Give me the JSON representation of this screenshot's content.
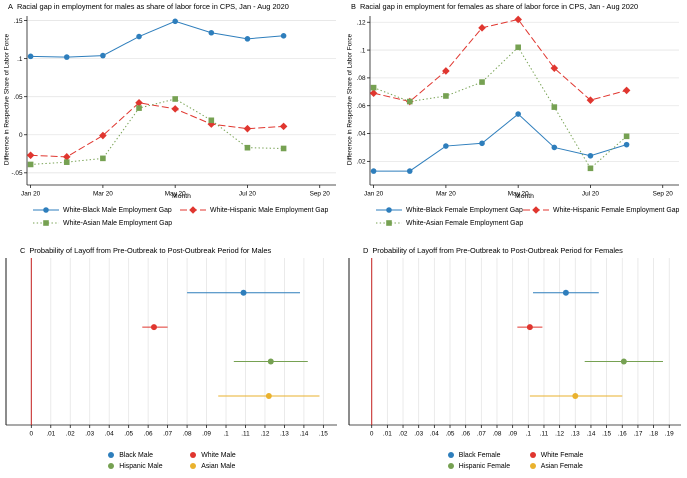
{
  "figure": {
    "background": "#ffffff",
    "axis_color": "#1a1a1a",
    "grid_color": "#e5e5e5",
    "zero_line_color": "#c5211f"
  },
  "chart_data": [
    {
      "type": "line",
      "panel_letter": "A",
      "title": "Racial gap in employment for males as share of labor force in CPS, Jan - Aug 2020",
      "xlabel": "Month",
      "ylabel": "Difference in Respective Share of Labor Force",
      "x_tick_labels": [
        "Jan 20",
        "Mar 20",
        "May 20",
        "Jul 20",
        "Sep 20"
      ],
      "x_tick_positions": [
        0,
        2,
        4,
        6,
        8
      ],
      "x_range": [
        -0.1,
        8.45
      ],
      "y_tick_values": [
        -0.05,
        0,
        0.05,
        0.1,
        0.15
      ],
      "y_tick_labels": [
        "-.05",
        "0",
        ".05",
        ".1",
        ".15"
      ],
      "y_range": [
        -0.066,
        0.156
      ],
      "grid": "horizontal",
      "series": [
        {
          "name": "White-Black Male Employment Gap",
          "color": "#2e7ebc",
          "marker": "circle",
          "dash": "solid",
          "values": [
            0.103,
            0.102,
            0.104,
            0.129,
            0.149,
            0.134,
            0.126,
            0.13
          ]
        },
        {
          "name": "White-Hispanic Male Employment Gap",
          "color": "#e0362f",
          "marker": "diamond",
          "dash": "dashed",
          "values": [
            -0.027,
            -0.029,
            -0.001,
            0.042,
            0.034,
            0.014,
            0.008,
            0.011
          ]
        },
        {
          "name": "White-Asian Male Employment Gap",
          "color": "#76a152",
          "marker": "square",
          "dash": "dotted",
          "values": [
            -0.039,
            -0.036,
            -0.031,
            0.035,
            0.047,
            0.019,
            -0.017,
            -0.018
          ]
        }
      ]
    },
    {
      "type": "line",
      "panel_letter": "B",
      "title": "Racial gap in employment for females as share of labor force in CPS, Jan - Aug 2020",
      "xlabel": "Month",
      "ylabel": "Difference in Respective Share of Labor Force",
      "x_tick_labels": [
        "Jan 20",
        "Mar 20",
        "May 20",
        "Jul 20",
        "Sep 20"
      ],
      "x_tick_positions": [
        0,
        2,
        4,
        6,
        8
      ],
      "x_range": [
        -0.1,
        8.45
      ],
      "y_tick_values": [
        0.02,
        0.04,
        0.06,
        0.08,
        0.1,
        0.12
      ],
      "y_tick_labels": [
        ".02",
        ".04",
        ".06",
        ".08",
        ".1",
        ".12"
      ],
      "y_range": [
        0.003,
        0.1245
      ],
      "grid": "horizontal",
      "series": [
        {
          "name": "White-Black Female Employment Gap",
          "color": "#2e7ebc",
          "marker": "circle",
          "dash": "solid",
          "values": [
            0.013,
            0.013,
            0.031,
            0.033,
            0.054,
            0.03,
            0.024,
            0.032
          ]
        },
        {
          "name": "White-Hispanic Female Employment Gap",
          "color": "#e0362f",
          "marker": "diamond",
          "dash": "dashed",
          "values": [
            0.069,
            0.063,
            0.085,
            0.116,
            0.122,
            0.087,
            0.064,
            0.071
          ]
        },
        {
          "name": "White-Asian Female Employment Gap",
          "color": "#76a152",
          "marker": "square",
          "dash": "dotted",
          "values": [
            0.073,
            0.063,
            0.067,
            0.077,
            0.102,
            0.059,
            0.015,
            0.038
          ]
        }
      ]
    },
    {
      "type": "ci",
      "panel_letter": "C",
      "title": "Probability of Layoff from Pre-Outbreak to Post-Outbreak Period for Males",
      "x_tick_values": [
        0,
        0.01,
        0.02,
        0.03,
        0.04,
        0.05,
        0.06,
        0.07,
        0.08,
        0.09,
        0.1,
        0.11,
        0.12,
        0.13,
        0.14,
        0.15
      ],
      "x_tick_labels": [
        "0",
        ".01",
        ".02",
        ".03",
        ".04",
        ".05",
        ".06",
        ".07",
        ".08",
        ".09",
        ".1",
        ".11",
        ".12",
        ".13",
        ".14",
        ".15"
      ],
      "x_range": [
        -0.013,
        0.157
      ],
      "grid": "vertical",
      "zero_line": 0,
      "points": [
        {
          "name": "Black Male",
          "color": "#2e7ebc",
          "value": 0.109,
          "ci": [
            0.08,
            0.138
          ]
        },
        {
          "name": "White Male",
          "color": "#e0362f",
          "value": 0.063,
          "ci": [
            0.057,
            0.07
          ]
        },
        {
          "name": "Hispanic Male",
          "color": "#76a152",
          "value": 0.123,
          "ci": [
            0.104,
            0.142
          ]
        },
        {
          "name": "Asian Male",
          "color": "#eab22e",
          "value": 0.122,
          "ci": [
            0.096,
            0.148
          ]
        }
      ]
    },
    {
      "type": "ci",
      "panel_letter": "D",
      "title": "Probability of Layoff from Pre-Outbreak to Post-Outbreak Period for Females",
      "x_tick_values": [
        0,
        0.01,
        0.02,
        0.03,
        0.04,
        0.05,
        0.06,
        0.07,
        0.08,
        0.09,
        0.1,
        0.11,
        0.12,
        0.13,
        0.14,
        0.15,
        0.16,
        0.17,
        0.18,
        0.19
      ],
      "x_tick_labels": [
        "0",
        ".01",
        ".02",
        ".03",
        ".04",
        ".05",
        ".06",
        ".07",
        ".08",
        ".09",
        ".1",
        ".11",
        ".12",
        ".13",
        ".14",
        ".15",
        ".16",
        ".17",
        ".18",
        ".19"
      ],
      "x_range": [
        -0.0145,
        0.1975
      ],
      "grid": "vertical",
      "zero_line": 0,
      "points": [
        {
          "name": "Black Female",
          "color": "#2e7ebc",
          "value": 0.124,
          "ci": [
            0.103,
            0.145
          ]
        },
        {
          "name": "White Female",
          "color": "#e0362f",
          "value": 0.101,
          "ci": [
            0.093,
            0.109
          ]
        },
        {
          "name": "Hispanic Female",
          "color": "#76a152",
          "value": 0.161,
          "ci": [
            0.136,
            0.186
          ]
        },
        {
          "name": "Asian Female",
          "color": "#eab22e",
          "value": 0.13,
          "ci": [
            0.101,
            0.16
          ]
        }
      ]
    }
  ]
}
